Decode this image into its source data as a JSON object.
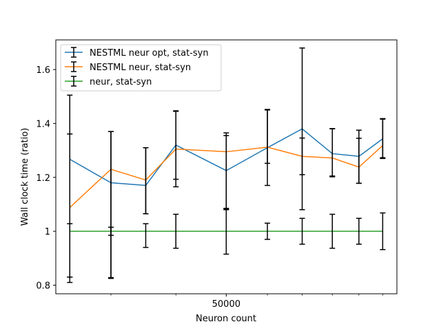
{
  "chart_data": {
    "type": "line",
    "title": "",
    "xlabel": "Neuron count",
    "ylabel": "Wall clock time (ratio)",
    "x_scale": "log",
    "x": [
      25000,
      30000,
      35000,
      40000,
      50000,
      60000,
      70000,
      80000,
      90000,
      100000
    ],
    "x_tick_labels": [
      {
        "value": 50000,
        "label": "50000"
      }
    ],
    "y_ticks": [
      {
        "value": 0.8,
        "label": "0.8"
      },
      {
        "value": 1.0,
        "label": "1"
      },
      {
        "value": 1.2,
        "label": "1.2"
      },
      {
        "value": 1.4,
        "label": "1.4"
      },
      {
        "value": 1.6,
        "label": "1.6"
      }
    ],
    "ylim": [
      0.768,
      1.71
    ],
    "grid": false,
    "legend_position": "top-left",
    "series": [
      {
        "name": "NESTML neur opt, stat-syn",
        "color": "#1f77b4",
        "values": [
          1.267,
          1.18,
          1.17,
          1.32,
          1.225,
          1.31,
          1.38,
          1.288,
          1.278,
          1.343
        ],
        "err_low": [
          0.437,
          0.352,
          0.105,
          0.127,
          0.14,
          0.14,
          0.3,
          0.083,
          0.1,
          0.073
        ],
        "err_high": [
          0.238,
          0.19,
          0.14,
          0.125,
          0.14,
          0.14,
          0.3,
          0.093,
          0.097,
          0.073
        ]
      },
      {
        "name": "NESTML neur, stat-syn",
        "color": "#ff7f0e",
        "values": [
          1.088,
          1.23,
          1.19,
          1.305,
          1.295,
          1.312,
          1.278,
          1.272,
          1.238,
          1.318
        ],
        "err_low": [
          0.258,
          0.245,
          0.125,
          0.14,
          0.215,
          0.06,
          0.068,
          0.07,
          0.06,
          0.045
        ],
        "err_high": [
          0.273,
          0.14,
          0.12,
          0.142,
          0.06,
          0.14,
          0.068,
          0.108,
          0.107,
          0.1
        ]
      },
      {
        "name": "neur, stat-syn",
        "color": "#2ca02c",
        "values": [
          1.0,
          1.0,
          1.0,
          1.0,
          1.0,
          1.0,
          1.0,
          1.0,
          1.0,
          1.0
        ],
        "err_low": [
          0.19,
          0.175,
          0.06,
          0.063,
          0.085,
          0.03,
          0.048,
          0.063,
          0.048,
          0.068
        ],
        "err_high": [
          0.028,
          0.015,
          0.028,
          0.063,
          0.082,
          0.03,
          0.048,
          0.063,
          0.048,
          0.068
        ]
      }
    ]
  }
}
